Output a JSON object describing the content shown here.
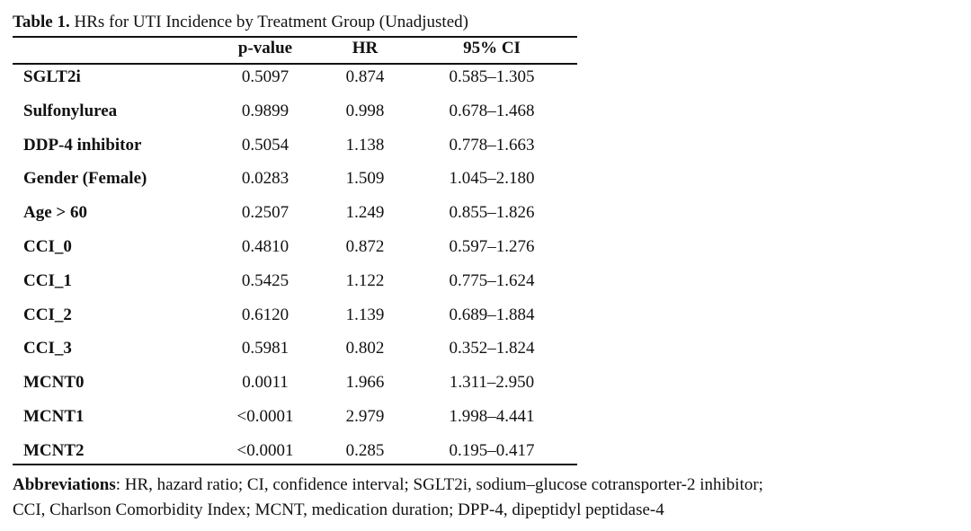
{
  "caption": {
    "label": "Table 1.",
    "text": "HRs for UTI Incidence by Treatment Group (Unadjusted)"
  },
  "columns": {
    "p_value": "p-value",
    "hr": "HR",
    "ci": "95% CI"
  },
  "rows": [
    {
      "variable": "SGLT2i",
      "p_value": "0.5097",
      "hr": "0.874",
      "ci": "0.585–1.305"
    },
    {
      "variable": "Sulfonylurea",
      "p_value": "0.9899",
      "hr": "0.998",
      "ci": "0.678–1.468"
    },
    {
      "variable": "DDP-4 inhibitor",
      "p_value": "0.5054",
      "hr": "1.138",
      "ci": "0.778–1.663"
    },
    {
      "variable": "Gender (Female)",
      "p_value": "0.0283",
      "hr": "1.509",
      "ci": "1.045–2.180"
    },
    {
      "variable": "Age > 60",
      "p_value": "0.2507",
      "hr": "1.249",
      "ci": "0.855–1.826"
    },
    {
      "variable": "CCI_0",
      "p_value": "0.4810",
      "hr": "0.872",
      "ci": "0.597–1.276"
    },
    {
      "variable": "CCI_1",
      "p_value": "0.5425",
      "hr": "1.122",
      "ci": "0.775–1.624"
    },
    {
      "variable": "CCI_2",
      "p_value": "0.6120",
      "hr": "1.139",
      "ci": "0.689–1.884"
    },
    {
      "variable": "CCI_3",
      "p_value": "0.5981",
      "hr": "0.802",
      "ci": "0.352–1.824"
    },
    {
      "variable": "MCNT0",
      "p_value": "0.0011",
      "hr": "1.966",
      "ci": "1.311–2.950"
    },
    {
      "variable": "MCNT1",
      "p_value": "<0.0001",
      "hr": "2.979",
      "ci": "1.998–4.441"
    },
    {
      "variable": "MCNT2",
      "p_value": "<0.0001",
      "hr": "0.285",
      "ci": "0.195–0.417"
    }
  ],
  "abbreviations": {
    "label": "Abbreviations",
    "line1": ": HR, hazard ratio; CI, confidence interval; SGLT2i, sodium–glucose cotransporter-2 inhibitor;",
    "line2": "CCI, Charlson Comorbidity Index; MCNT, medication duration; DPP-4, dipeptidyl peptidase-4"
  }
}
